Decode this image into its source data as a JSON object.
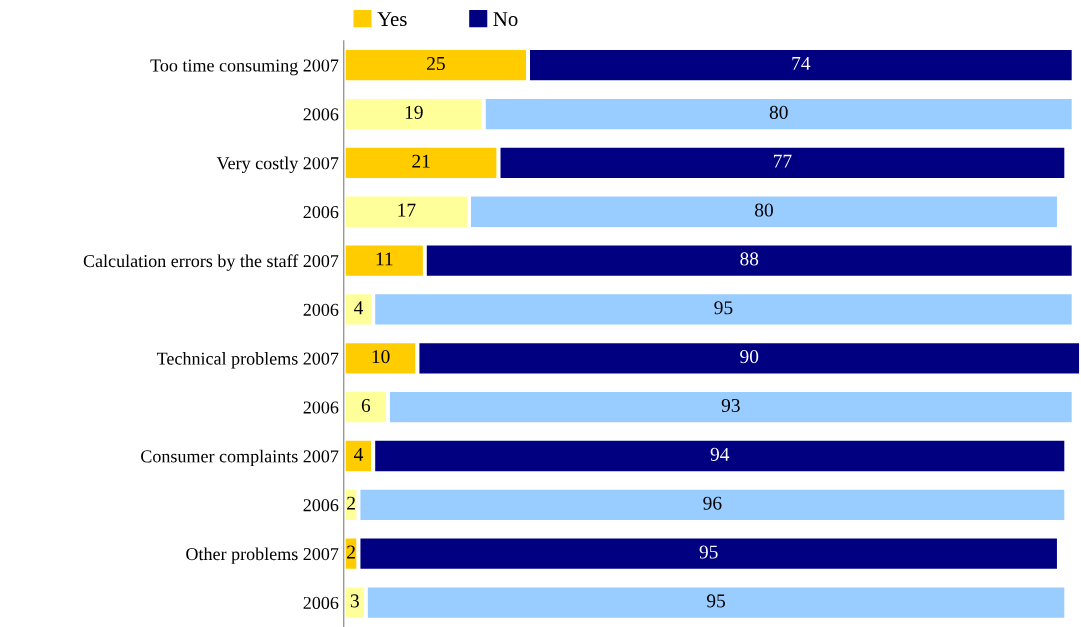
{
  "chart_data": {
    "type": "bar",
    "orientation": "horizontal",
    "stacked": true,
    "categories": [
      "Too time consuming 2007",
      "2006",
      "Very costly 2007",
      "2006",
      "Calculation errors by the staff 2007",
      "2006",
      "Technical problems 2007",
      "2006",
      "Consumer complaints 2007",
      "2006",
      "Other problems 2007",
      "2006"
    ],
    "series": [
      {
        "name": "Yes",
        "color": "#ffcc00",
        "colors": [
          "#ffcc00",
          "#ffff99",
          "#ffcc00",
          "#ffff99",
          "#ffcc00",
          "#ffff99",
          "#ffcc00",
          "#ffff99",
          "#ffcc00",
          "#ffff99",
          "#ffcc00",
          "#ffff99"
        ],
        "values": [
          25,
          19,
          21,
          17,
          11,
          4,
          10,
          6,
          4,
          2,
          2,
          3
        ]
      },
      {
        "name": "No",
        "color": "#000080",
        "colors": [
          "#000080",
          "#99ccff",
          "#000080",
          "#99ccff",
          "#000080",
          "#99ccff",
          "#000080",
          "#99ccff",
          "#000080",
          "#99ccff",
          "#000080",
          "#99ccff"
        ],
        "values": [
          74,
          80,
          77,
          80,
          88,
          95,
          90,
          93,
          94,
          96,
          95,
          95
        ]
      }
    ],
    "data_labels": true,
    "legend": "top",
    "grid": false,
    "tick_labels": "y"
  }
}
